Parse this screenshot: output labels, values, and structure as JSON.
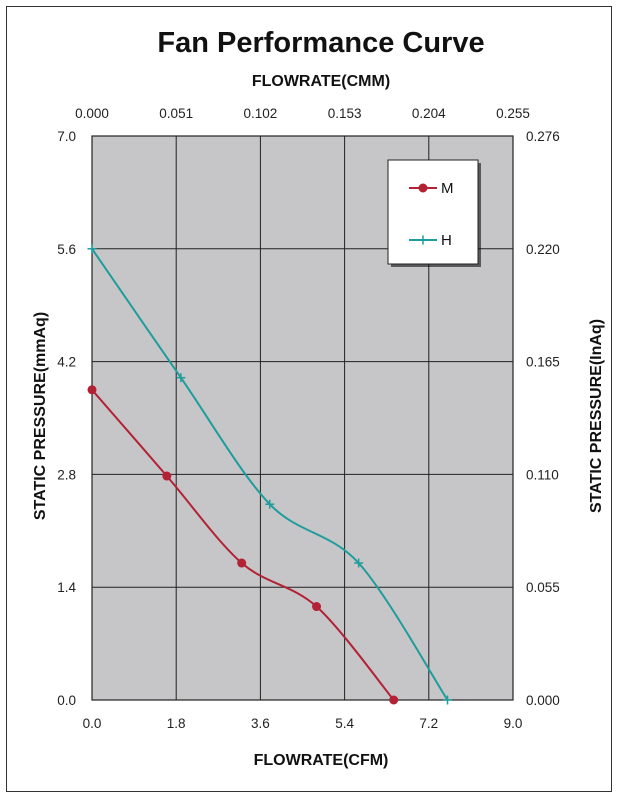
{
  "chart_data": {
    "type": "line",
    "title": "Fan Performance Curve",
    "xlabel": "FLOWRATE(CFM)",
    "x2label": "FLOWRATE(CMM)",
    "ylabel": "STATIC PRESSURE(mmAq)",
    "y2label": "STATIC PRESSURE(InAq)",
    "xlim": [
      0,
      9.0
    ],
    "ylim": [
      0,
      7.0
    ],
    "x_ticks": [
      "0.0",
      "1.8",
      "3.6",
      "5.4",
      "7.2",
      "9.0"
    ],
    "x2_ticks": [
      "0.000",
      "0.051",
      "0.102",
      "0.153",
      "0.204",
      "0.255"
    ],
    "y_ticks": [
      "0.0",
      "1.4",
      "2.8",
      "4.2",
      "5.6",
      "7.0"
    ],
    "y2_ticks": [
      "0.000",
      "0.055",
      "0.110",
      "0.165",
      "0.220",
      "0.276"
    ],
    "grid": true,
    "legend_position": "top-right",
    "plot_background": "#c6c6c9",
    "series": [
      {
        "name": "M",
        "color": "#b22234",
        "marker": "circle",
        "points": [
          [
            0.0,
            3.85
          ],
          [
            1.6,
            2.78
          ],
          [
            3.2,
            1.7
          ],
          [
            4.8,
            1.16
          ],
          [
            6.45,
            0.0
          ]
        ]
      },
      {
        "name": "H",
        "color": "#1f9c9c",
        "marker": "plus",
        "points": [
          [
            0.0,
            5.6
          ],
          [
            1.9,
            4.0
          ],
          [
            3.8,
            2.43
          ],
          [
            5.7,
            1.7
          ],
          [
            7.6,
            0.0
          ]
        ]
      }
    ]
  }
}
